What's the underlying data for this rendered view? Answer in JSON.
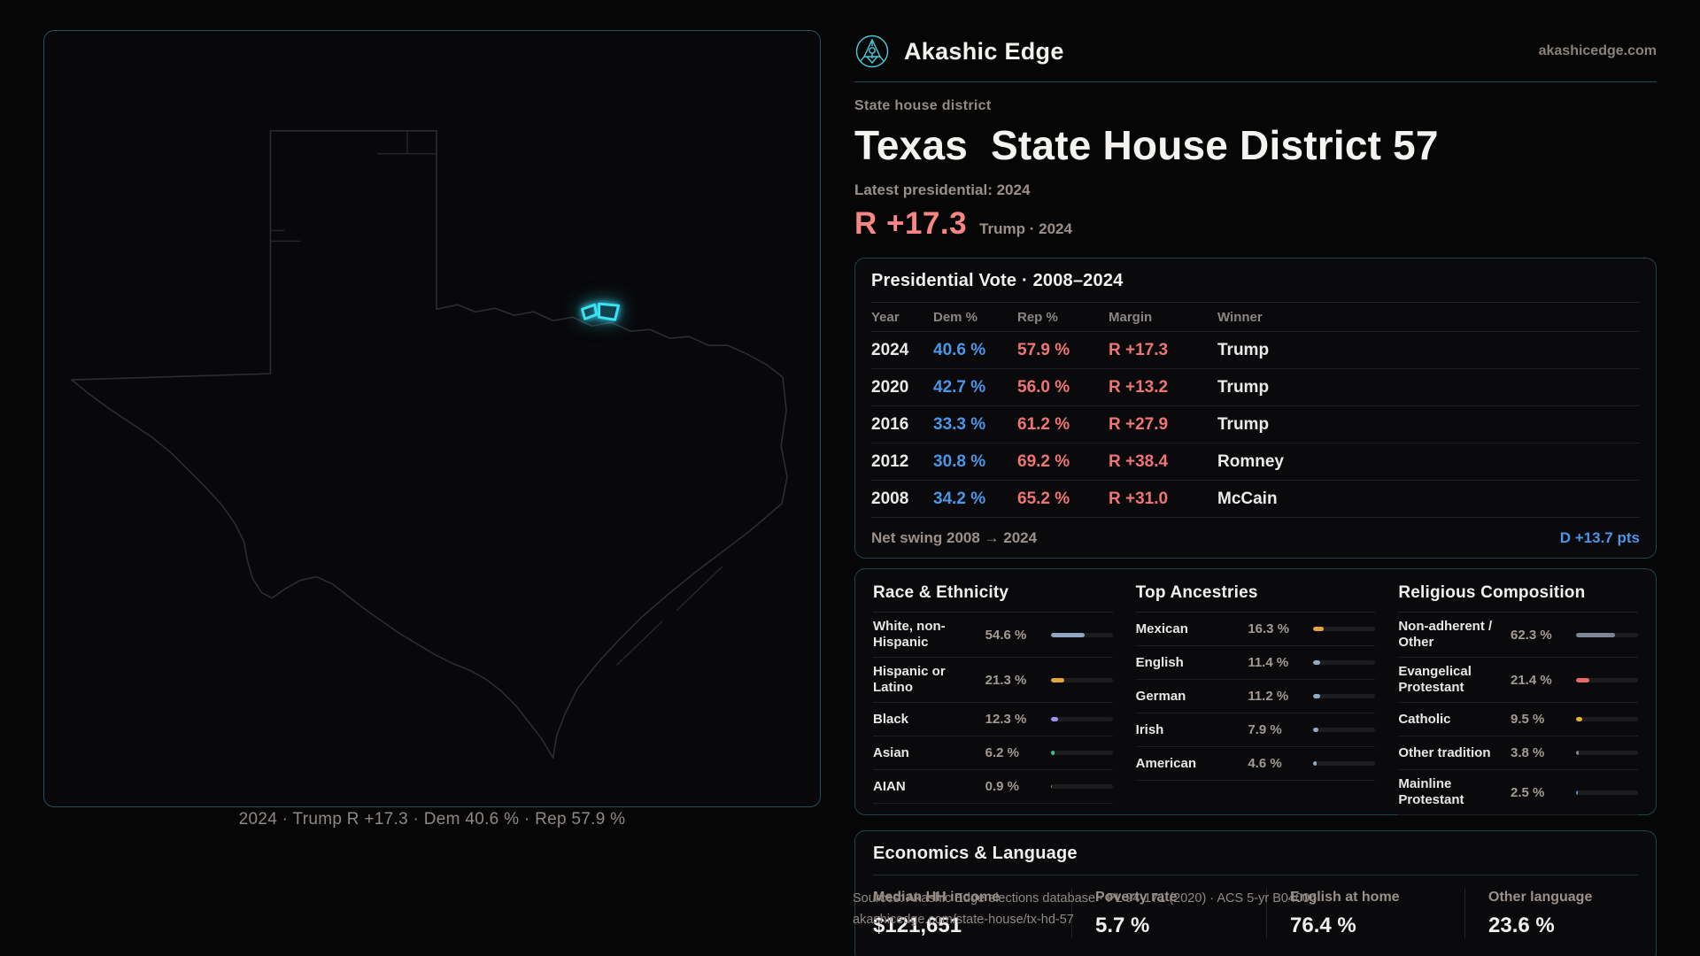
{
  "brand": {
    "name": "Akashic Edge",
    "domain": "akashicedge.com"
  },
  "header": {
    "kicker": "State house district",
    "title_prefix": "Texas",
    "title_rest": "State House District 57",
    "latest_label": "Latest presidential: 2024",
    "headline_margin": "R +17.3",
    "headline_context": "Trump · 2024"
  },
  "map": {
    "caption": "2024 · Trump R +17.3 · Dem 40.6 % · Rep 57.9 %"
  },
  "presidential": {
    "title": "Presidential Vote · 2008–2024",
    "columns": [
      "Year",
      "Dem %",
      "Rep %",
      "Margin",
      "Winner"
    ],
    "rows": [
      {
        "year": "2024",
        "dem": "40.6 %",
        "rep": "57.9 %",
        "margin": "R +17.3",
        "winner": "Trump"
      },
      {
        "year": "2020",
        "dem": "42.7 %",
        "rep": "56.0 %",
        "margin": "R +13.2",
        "winner": "Trump"
      },
      {
        "year": "2016",
        "dem": "33.3 %",
        "rep": "61.2 %",
        "margin": "R +27.9",
        "winner": "Trump"
      },
      {
        "year": "2012",
        "dem": "30.8 %",
        "rep": "69.2 %",
        "margin": "R +38.4",
        "winner": "Romney"
      },
      {
        "year": "2008",
        "dem": "34.2 %",
        "rep": "65.2 %",
        "margin": "R +31.0",
        "winner": "McCain"
      }
    ],
    "net_swing_label": "Net swing 2008 → 2024",
    "net_swing_value": "D +13.7 pts"
  },
  "demographics": {
    "race": {
      "title": "Race & Ethnicity",
      "rows": [
        {
          "label": "White, non-Hispanic",
          "value": "54.6 %",
          "pct": 54.6,
          "color": "#8fa5c2"
        },
        {
          "label": "Hispanic or Latino",
          "value": "21.3 %",
          "pct": 21.3,
          "color": "#e3a43b"
        },
        {
          "label": "Black",
          "value": "12.3 %",
          "pct": 12.3,
          "color": "#a18ef2"
        },
        {
          "label": "Asian",
          "value": "6.2 %",
          "pct": 6.2,
          "color": "#2ec992"
        },
        {
          "label": "AIAN",
          "value": "0.9 %",
          "pct": 0.9,
          "color": "#c07a35"
        }
      ]
    },
    "ancestries": {
      "title": "Top Ancestries",
      "rows": [
        {
          "label": "Mexican",
          "value": "16.3 %",
          "pct": 16.3,
          "color": "#e3a43b"
        },
        {
          "label": "English",
          "value": "11.4 %",
          "pct": 11.4,
          "color": "#93a9c4"
        },
        {
          "label": "German",
          "value": "11.2 %",
          "pct": 11.2,
          "color": "#93a9c4"
        },
        {
          "label": "Irish",
          "value": "7.9 %",
          "pct": 7.9,
          "color": "#93a9c4"
        },
        {
          "label": "American",
          "value": "4.6 %",
          "pct": 4.6,
          "color": "#93a9c4"
        }
      ]
    },
    "religion": {
      "title": "Religious Composition",
      "rows": [
        {
          "label": "Non-adherent / Other",
          "value": "62.3 %",
          "pct": 62.3,
          "color": "#7d8694"
        },
        {
          "label": "Evangelical Protestant",
          "value": "21.4 %",
          "pct": 21.4,
          "color": "#e56a6a"
        },
        {
          "label": "Catholic",
          "value": "9.5 %",
          "pct": 9.5,
          "color": "#e6b32e"
        },
        {
          "label": "Other tradition",
          "value": "3.8 %",
          "pct": 3.8,
          "color": "#7d8694"
        },
        {
          "label": "Mainline Protestant",
          "value": "2.5 %",
          "pct": 2.5,
          "color": "#4f97e0"
        }
      ]
    }
  },
  "economics": {
    "title": "Economics & Language",
    "stats": [
      {
        "label": "Median HH income",
        "value": "$121,651"
      },
      {
        "label": "Poverty rate",
        "value": "5.7 %"
      },
      {
        "label": "English at home",
        "value": "76.4 %"
      },
      {
        "label": "Other language",
        "value": "23.6 %"
      }
    ]
  },
  "footer": {
    "line1": "Sources: Akashic Edge elections database · PL 94-171 (2020) · ACS 5-yr B04006",
    "line2": "akashicedge.com/state-house/tx-hd-57"
  }
}
